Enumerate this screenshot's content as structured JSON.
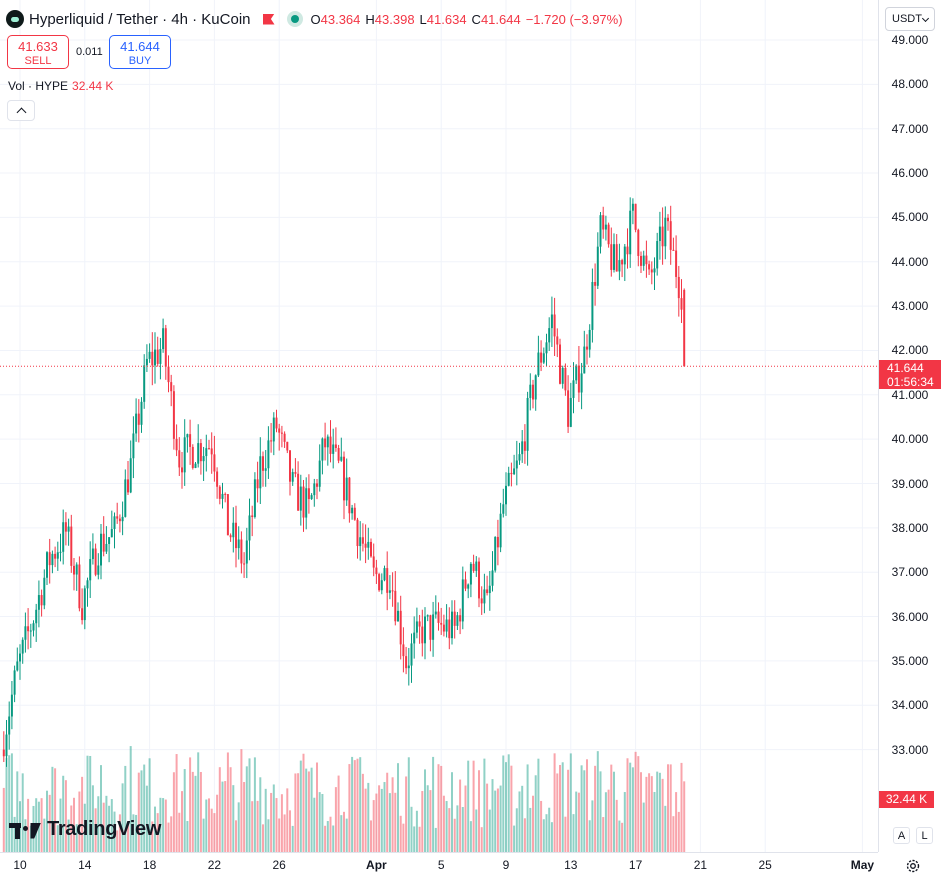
{
  "header": {
    "title": "Hyperliquid / Tether · 4h · KuCoin",
    "ohlc": {
      "o_label": "O",
      "o": "43.364",
      "h_label": "H",
      "h": "43.398",
      "l_label": "L",
      "l": "41.634",
      "c_label": "C",
      "c": "41.644",
      "change": "−1.720 (−3.97%)"
    },
    "icons": [
      "hyperliquid-logo-icon",
      "red-flag-icon",
      "market-status-dot-icon"
    ]
  },
  "trade": {
    "sell_price": "41.633",
    "sell_label": "SELL",
    "spread": "0.011",
    "buy_price": "41.644",
    "buy_label": "BUY"
  },
  "volume_legend": {
    "label": "Vol · HYPE",
    "value": "32.44 K"
  },
  "currency_selector": {
    "value": "USDT"
  },
  "price_axis": {
    "labels": [
      "49.000",
      "48.000",
      "47.000",
      "46.000",
      "45.000",
      "44.000",
      "43.000",
      "42.000",
      "41.000",
      "40.000",
      "39.000",
      "38.000",
      "37.000",
      "36.000",
      "35.000",
      "34.000",
      "33.000"
    ],
    "current_price": "41.644",
    "countdown": "01:56:34",
    "volume_badge": "32.44 K",
    "auto_button": "A",
    "log_button": "L"
  },
  "time_axis": {
    "labels": [
      {
        "text": "10",
        "bold": false
      },
      {
        "text": "14",
        "bold": false
      },
      {
        "text": "18",
        "bold": false
      },
      {
        "text": "22",
        "bold": false
      },
      {
        "text": "26",
        "bold": false
      },
      {
        "text": "Apr",
        "bold": true
      },
      {
        "text": "5",
        "bold": false
      },
      {
        "text": "9",
        "bold": false
      },
      {
        "text": "13",
        "bold": false
      },
      {
        "text": "17",
        "bold": false
      },
      {
        "text": "21",
        "bold": false
      },
      {
        "text": "25",
        "bold": false
      },
      {
        "text": "May",
        "bold": true
      }
    ]
  },
  "watermark": {
    "text": "TradingView"
  },
  "colors": {
    "up": "#089981",
    "down": "#f23645",
    "grid": "#f0f3fa"
  },
  "chart_data": {
    "type": "candlestick",
    "timeframe": "4h",
    "ylim": [
      33.0,
      49.0
    ],
    "anchors": [
      {
        "t": "Mar 09",
        "close": 33.0
      },
      {
        "t": "Mar 10",
        "close": 34.8
      },
      {
        "t": "Mar 11",
        "close": 36.0
      },
      {
        "t": "Mar 12",
        "close": 37.3
      },
      {
        "t": "Mar 13",
        "close": 37.9
      },
      {
        "t": "Mar 14",
        "close": 36.3
      },
      {
        "t": "Mar 15",
        "close": 37.6
      },
      {
        "t": "Mar 16",
        "close": 37.9
      },
      {
        "t": "Mar 17",
        "close": 39.4
      },
      {
        "t": "Mar 18",
        "close": 41.7
      },
      {
        "t": "Mar 19",
        "close": 42.1
      },
      {
        "t": "Mar 20",
        "close": 39.6
      },
      {
        "t": "Mar 21",
        "close": 39.8
      },
      {
        "t": "Mar 22",
        "close": 39.9
      },
      {
        "t": "Mar 23",
        "close": 38.0
      },
      {
        "t": "Mar 24",
        "close": 37.2
      },
      {
        "t": "Mar 25",
        "close": 39.4
      },
      {
        "t": "Mar 26",
        "close": 40.3
      },
      {
        "t": "Mar 27",
        "close": 38.9
      },
      {
        "t": "Mar 28",
        "close": 38.4
      },
      {
        "t": "Mar 29",
        "close": 39.9
      },
      {
        "t": "Mar 30",
        "close": 39.2
      },
      {
        "t": "Mar 31",
        "close": 38.0
      },
      {
        "t": "Apr 01",
        "close": 36.9
      },
      {
        "t": "Apr 02",
        "close": 37.0
      },
      {
        "t": "Apr 03",
        "close": 35.0
      },
      {
        "t": "Apr 04",
        "close": 35.7
      },
      {
        "t": "Apr 05",
        "close": 35.8
      },
      {
        "t": "Apr 06",
        "close": 35.7
      },
      {
        "t": "Apr 07",
        "close": 37.3
      },
      {
        "t": "Apr 08",
        "close": 36.2
      },
      {
        "t": "Apr 09",
        "close": 38.5
      },
      {
        "t": "Apr 10",
        "close": 39.5
      },
      {
        "t": "Apr 11",
        "close": 41.5
      },
      {
        "t": "Apr 12",
        "close": 42.7
      },
      {
        "t": "Apr 13",
        "close": 40.6
      },
      {
        "t": "Apr 14",
        "close": 41.9
      },
      {
        "t": "Apr 15",
        "close": 44.7
      },
      {
        "t": "Apr 16",
        "close": 43.8
      },
      {
        "t": "Apr 17",
        "close": 45.0
      },
      {
        "t": "Apr 18",
        "close": 43.5
      },
      {
        "t": "Apr 19",
        "close": 44.8
      },
      {
        "t": "Apr 20",
        "close": 43.36
      }
    ],
    "last_candle": {
      "open": 43.364,
      "high": 43.398,
      "low": 41.634,
      "close": 41.644
    }
  }
}
